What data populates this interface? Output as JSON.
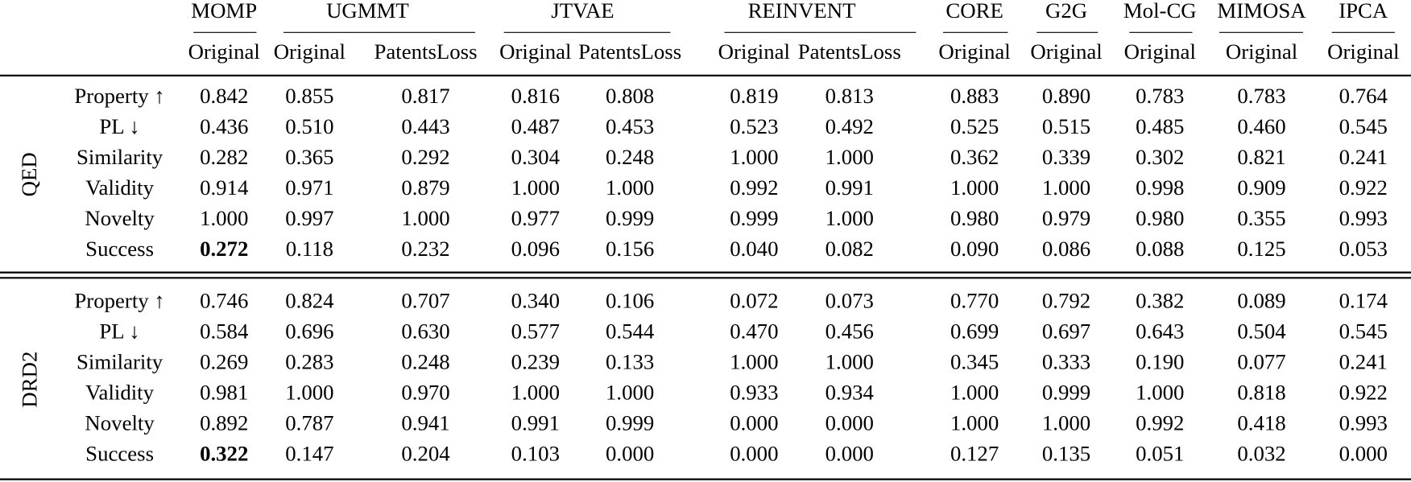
{
  "table": {
    "methods": [
      {
        "name": "MOMP",
        "columns": [
          "Original"
        ]
      },
      {
        "name": "UGMMT",
        "columns": [
          "Original",
          "PatentsLoss"
        ]
      },
      {
        "name": "JTVAE",
        "columns": [
          "Original",
          "PatentsLoss"
        ]
      },
      {
        "name": "REINVENT",
        "columns": [
          "Original",
          "PatentsLoss"
        ]
      },
      {
        "name": "CORE",
        "columns": [
          "Original"
        ]
      },
      {
        "name": "G2G",
        "columns": [
          "Original"
        ]
      },
      {
        "name": "Mol-CG",
        "columns": [
          "Original"
        ]
      },
      {
        "name": "MIMOSA",
        "columns": [
          "Original"
        ]
      },
      {
        "name": "IPCA",
        "columns": [
          "Original"
        ]
      }
    ],
    "groups": [
      {
        "name": "QED",
        "rows": [
          {
            "metric": "Property ↑",
            "values": [
              "0.842",
              "0.855",
              "0.817",
              "0.816",
              "0.808",
              "0.819",
              "0.813",
              "0.883",
              "0.890",
              "0.783",
              "0.783",
              "0.764"
            ]
          },
          {
            "metric": "PL ↓",
            "values": [
              "0.436",
              "0.510",
              "0.443",
              "0.487",
              "0.453",
              "0.523",
              "0.492",
              "0.525",
              "0.515",
              "0.485",
              "0.460",
              "0.545"
            ]
          },
          {
            "metric": "Similarity",
            "values": [
              "0.282",
              "0.365",
              "0.292",
              "0.304",
              "0.248",
              "1.000",
              "1.000",
              "0.362",
              "0.339",
              "0.302",
              "0.821",
              "0.241"
            ]
          },
          {
            "metric": "Validity",
            "values": [
              "0.914",
              "0.971",
              "0.879",
              "1.000",
              "1.000",
              "0.992",
              "0.991",
              "1.000",
              "1.000",
              "0.998",
              "0.909",
              "0.922"
            ]
          },
          {
            "metric": "Novelty",
            "values": [
              "1.000",
              "0.997",
              "1.000",
              "0.977",
              "0.999",
              "0.999",
              "1.000",
              "0.980",
              "0.979",
              "0.980",
              "0.355",
              "0.993"
            ]
          },
          {
            "metric": "Success",
            "values": [
              "0.272",
              "0.118",
              "0.232",
              "0.096",
              "0.156",
              "0.040",
              "0.082",
              "0.090",
              "0.086",
              "0.088",
              "0.125",
              "0.053"
            ],
            "bold": [
              0
            ]
          }
        ]
      },
      {
        "name": "DRD2",
        "rows": [
          {
            "metric": "Property ↑",
            "values": [
              "0.746",
              "0.824",
              "0.707",
              "0.340",
              "0.106",
              "0.072",
              "0.073",
              "0.770",
              "0.792",
              "0.382",
              "0.089",
              "0.174"
            ]
          },
          {
            "metric": "PL ↓",
            "values": [
              "0.584",
              "0.696",
              "0.630",
              "0.577",
              "0.544",
              "0.470",
              "0.456",
              "0.699",
              "0.697",
              "0.643",
              "0.504",
              "0.545"
            ]
          },
          {
            "metric": "Similarity",
            "values": [
              "0.269",
              "0.283",
              "0.248",
              "0.239",
              "0.133",
              "1.000",
              "1.000",
              "0.345",
              "0.333",
              "0.190",
              "0.077",
              "0.241"
            ]
          },
          {
            "metric": "Validity",
            "values": [
              "0.981",
              "1.000",
              "0.970",
              "1.000",
              "1.000",
              "0.933",
              "0.934",
              "1.000",
              "0.999",
              "1.000",
              "0.818",
              "0.922"
            ]
          },
          {
            "metric": "Novelty",
            "values": [
              "0.892",
              "0.787",
              "0.941",
              "0.991",
              "0.999",
              "0.000",
              "0.000",
              "1.000",
              "1.000",
              "0.992",
              "0.418",
              "0.993"
            ]
          },
          {
            "metric": "Success",
            "values": [
              "0.322",
              "0.147",
              "0.204",
              "0.103",
              "0.000",
              "0.000",
              "0.000",
              "0.127",
              "0.135",
              "0.051",
              "0.032",
              "0.000"
            ],
            "bold": [
              0
            ]
          }
        ]
      }
    ]
  }
}
